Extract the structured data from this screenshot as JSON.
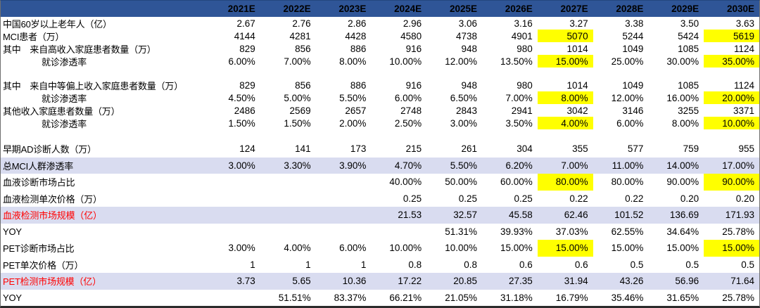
{
  "chart_data": {
    "type": "table",
    "columns": [
      "2021E",
      "2022E",
      "2023E",
      "2024E",
      "2025E",
      "2026E",
      "2027E",
      "2028E",
      "2029E",
      "2030E"
    ],
    "rows": [
      {
        "label": "中国60岁以上老年人（亿）",
        "values": [
          "2.67",
          "2.76",
          "2.86",
          "2.96",
          "3.06",
          "3.16",
          "3.27",
          "3.38",
          "3.50",
          "3.63"
        ]
      },
      {
        "label": "MCI患者（万）",
        "values": [
          "4144",
          "4281",
          "4428",
          "4580",
          "4738",
          "4901",
          "5070",
          "5244",
          "5424",
          "5619"
        ],
        "highlight_cols": [
          6,
          9
        ]
      },
      {
        "label": "其中　来自高收入家庭患者数量（万）",
        "values": [
          "829",
          "856",
          "886",
          "916",
          "948",
          "980",
          "1014",
          "1049",
          "1085",
          "1124"
        ]
      },
      {
        "label": "就诊渗透率",
        "indent": 1,
        "values": [
          "6.00%",
          "7.00%",
          "8.00%",
          "10.00%",
          "12.00%",
          "13.50%",
          "15.00%",
          "25.00%",
          "30.00%",
          "35.00%"
        ],
        "highlight_cols": [
          6,
          9
        ]
      },
      {
        "spacer": true
      },
      {
        "label": "其中　来自中等偏上收入家庭患者数量（万）",
        "values": [
          "829",
          "856",
          "886",
          "916",
          "948",
          "980",
          "1014",
          "1049",
          "1085",
          "1124"
        ]
      },
      {
        "label": "就诊渗透率",
        "indent": 1,
        "values": [
          "4.50%",
          "5.00%",
          "5.50%",
          "6.00%",
          "6.50%",
          "7.00%",
          "8.00%",
          "12.00%",
          "16.00%",
          "20.00%"
        ],
        "highlight_cols": [
          6,
          9
        ]
      },
      {
        "label": "其他收入家庭患者数量（万）",
        "values": [
          "2486",
          "2569",
          "2657",
          "2748",
          "2843",
          "2941",
          "3042",
          "3146",
          "3255",
          "3371"
        ]
      },
      {
        "label": "就诊渗透率",
        "indent": 1,
        "values": [
          "1.50%",
          "1.50%",
          "2.00%",
          "2.50%",
          "3.00%",
          "3.50%",
          "4.00%",
          "6.00%",
          "8.00%",
          "10.00%"
        ],
        "highlight_cols": [
          6,
          9
        ]
      },
      {
        "spacer": true
      },
      {
        "label": "早期AD诊断人数（万）",
        "values": [
          "124",
          "141",
          "173",
          "215",
          "261",
          "304",
          "355",
          "577",
          "759",
          "955"
        ]
      },
      {
        "label": "总MCI人群渗透率",
        "band": true,
        "values": [
          "3.00%",
          "3.30%",
          "3.90%",
          "4.70%",
          "5.50%",
          "6.20%",
          "7.00%",
          "11.00%",
          "14.00%",
          "17.00%"
        ]
      },
      {
        "label": "血液诊断市场占比",
        "values": [
          "",
          "",
          "",
          "40.00%",
          "50.00%",
          "60.00%",
          "80.00%",
          "80.00%",
          "90.00%",
          "90.00%"
        ],
        "highlight_cols": [
          6,
          9
        ]
      },
      {
        "label": "血液检测单次价格（万）",
        "values": [
          "",
          "",
          "",
          "0.25",
          "0.25",
          "0.25",
          "0.22",
          "0.22",
          "0.20",
          "0.20"
        ]
      },
      {
        "label": "血液检测市场规模（亿）",
        "band": true,
        "label_red": true,
        "values": [
          "",
          "",
          "",
          "21.53",
          "32.57",
          "45.58",
          "62.46",
          "101.52",
          "136.69",
          "171.93"
        ]
      },
      {
        "label": "YOY",
        "values": [
          "",
          "",
          "",
          "",
          "51.31%",
          "39.93%",
          "37.03%",
          "62.55%",
          "34.64%",
          "25.78%"
        ]
      },
      {
        "label": "PET诊断市场占比",
        "values": [
          "3.00%",
          "4.00%",
          "6.00%",
          "10.00%",
          "10.00%",
          "15.00%",
          "15.00%",
          "15.00%",
          "15.00%",
          "15.00%"
        ],
        "highlight_cols": [
          6,
          9
        ]
      },
      {
        "label": "PET单次价格（万）",
        "values": [
          "1",
          "1",
          "1",
          "0.8",
          "0.8",
          "0.6",
          "0.6",
          "0.5",
          "0.5",
          "0.5"
        ]
      },
      {
        "label": "PET检测市场规模（亿）",
        "band": true,
        "label_red": true,
        "values": [
          "3.73",
          "5.65",
          "10.36",
          "17.22",
          "20.85",
          "27.35",
          "31.94",
          "43.26",
          "56.96",
          "71.64"
        ]
      },
      {
        "label": "YOY",
        "values": [
          "",
          "51.51%",
          "83.37%",
          "66.21%",
          "21.05%",
          "31.18%",
          "16.79%",
          "35.46%",
          "31.65%",
          "25.78%"
        ]
      }
    ],
    "colors": {
      "header_bg": "#2F5597",
      "header_text": "#FFFFFF",
      "band_bg": "#D9DCF0",
      "highlight_bg": "#FFFF00",
      "red_text": "#FF0000"
    }
  }
}
